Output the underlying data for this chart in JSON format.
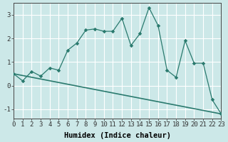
{
  "line1_x": [
    0,
    1,
    2,
    3,
    4,
    5,
    6,
    7,
    8,
    9,
    10,
    11,
    12,
    13,
    14,
    15,
    16,
    17,
    18,
    19,
    20,
    21,
    22,
    23
  ],
  "line1_y": [
    0.5,
    0.2,
    0.6,
    0.4,
    0.75,
    0.65,
    1.5,
    1.8,
    2.35,
    2.4,
    2.3,
    2.3,
    2.85,
    1.7,
    2.2,
    3.3,
    2.55,
    0.65,
    0.35,
    1.9,
    0.95,
    0.95,
    -0.6,
    -1.2
  ],
  "line2_x": [
    0,
    23
  ],
  "line2_y": [
    0.5,
    -1.2
  ],
  "line_color": "#2a7a6e",
  "bg_color": "#cce8e8",
  "grid_color": "#ffffff",
  "xlabel": "Humidex (Indice chaleur)",
  "xlim": [
    0,
    23
  ],
  "ylim": [
    -1.4,
    3.5
  ],
  "yticks": [
    -1,
    0,
    1,
    2,
    3
  ],
  "xticks": [
    0,
    1,
    2,
    3,
    4,
    5,
    6,
    7,
    8,
    9,
    10,
    11,
    12,
    13,
    14,
    15,
    16,
    17,
    18,
    19,
    20,
    21,
    22,
    23
  ],
  "xlabel_fontsize": 7.5,
  "tick_fontsize": 6.5
}
